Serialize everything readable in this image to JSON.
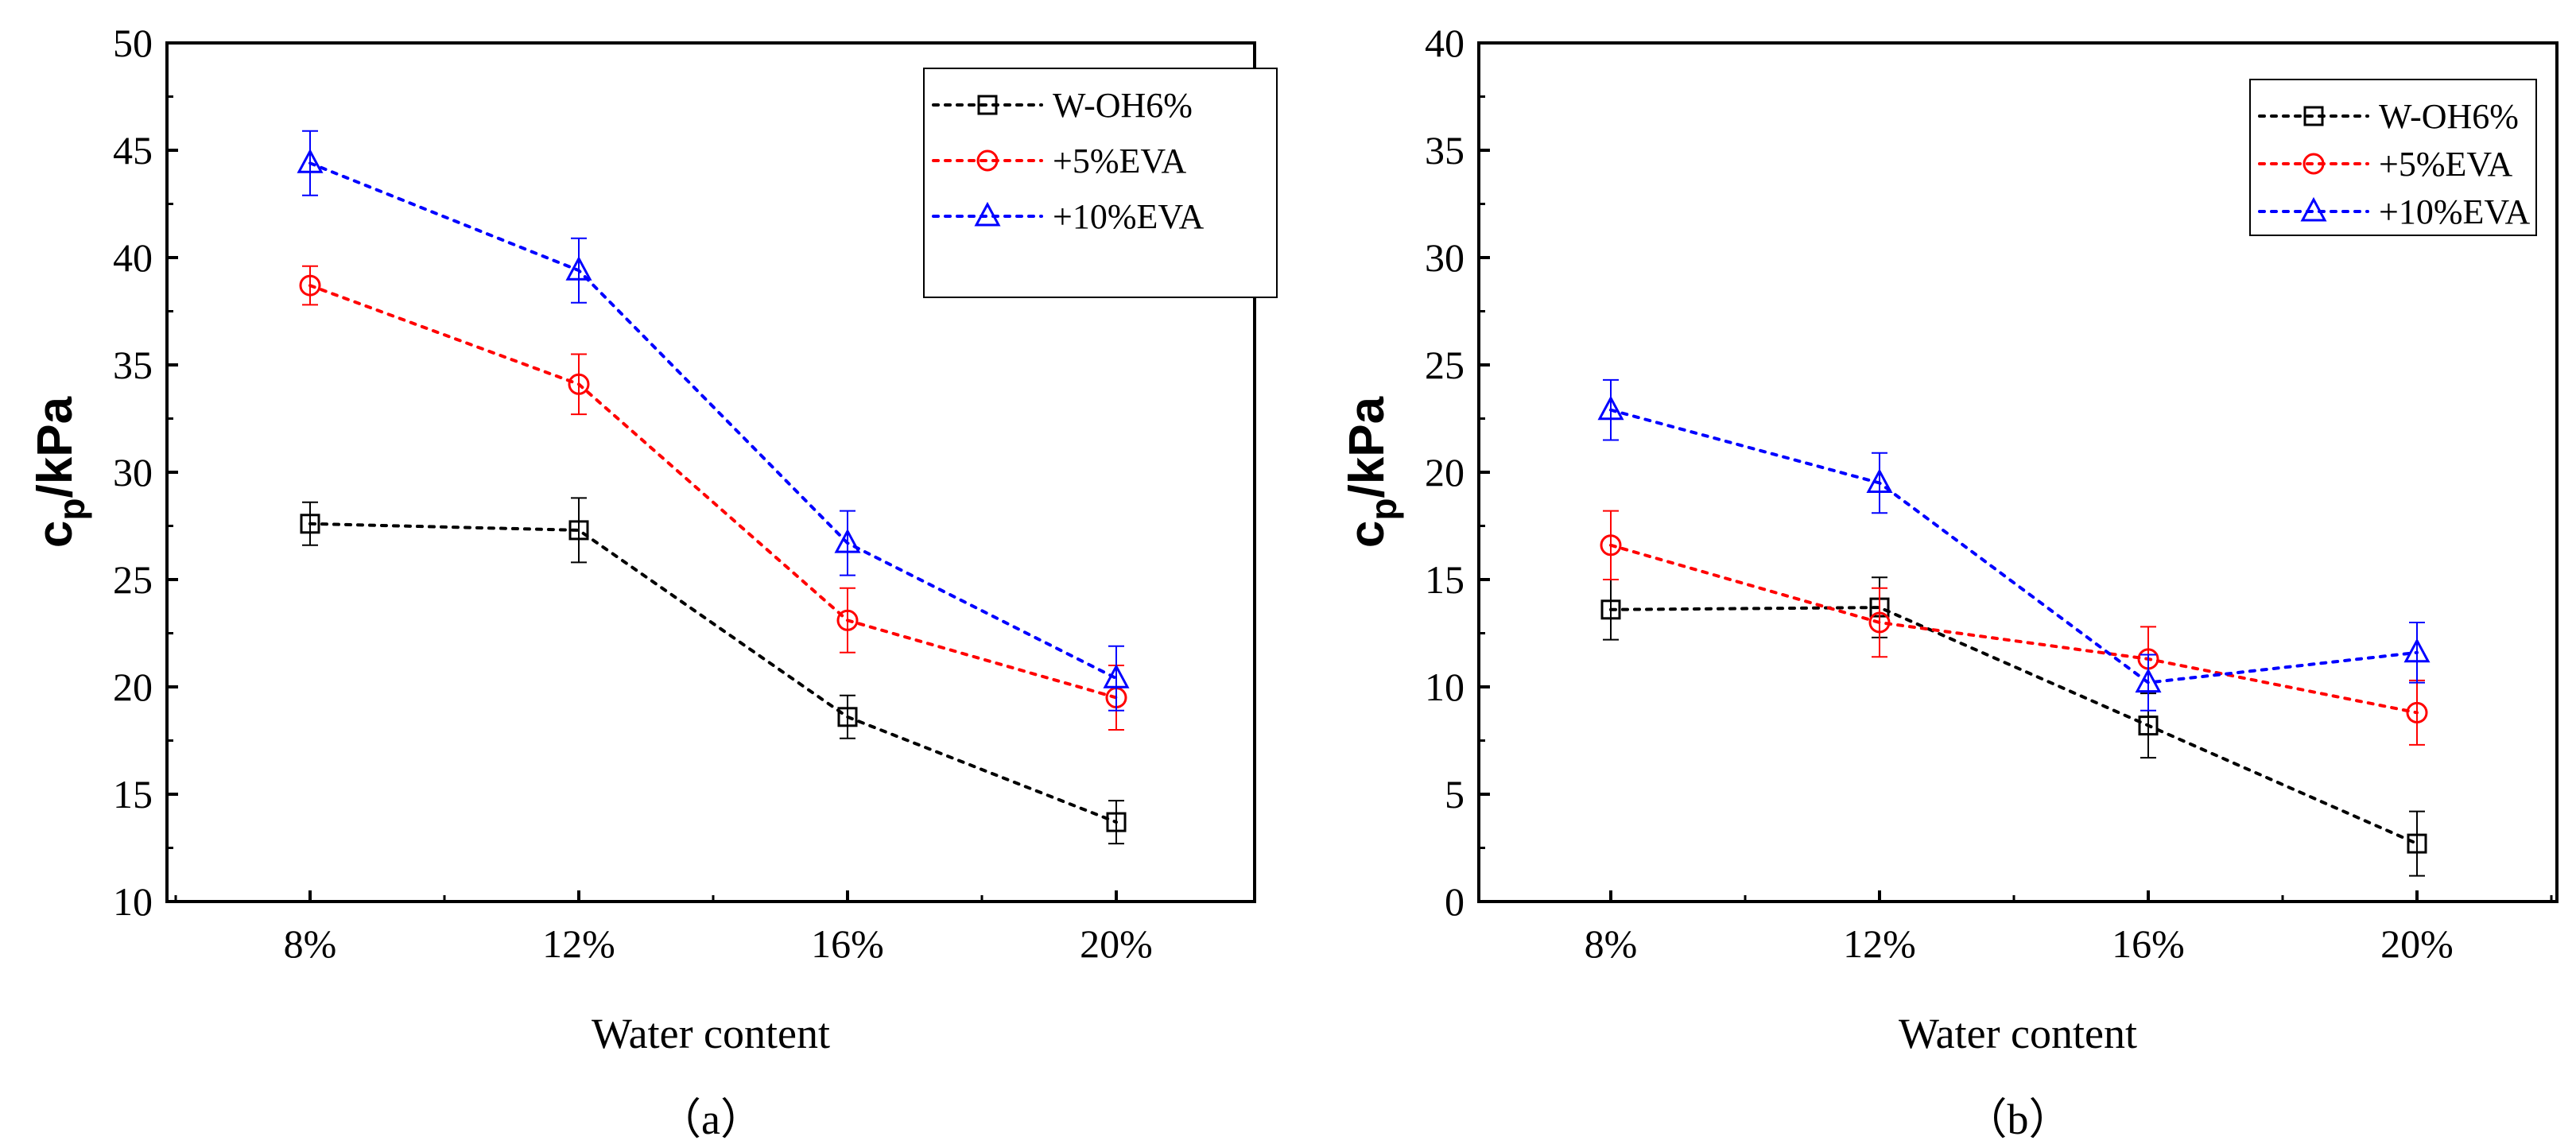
{
  "chart_data": [
    {
      "type": "line",
      "panel_label": "（a）",
      "xlabel": "Water content",
      "ylabel_main": "c",
      "ylabel_sub": "p",
      "ylabel_unit": "/kPa",
      "categories": [
        "8%",
        "12%",
        "16%",
        "20%"
      ],
      "ylim": [
        10,
        50
      ],
      "yticks": [
        "10",
        "15",
        "20",
        "25",
        "30",
        "35",
        "40",
        "45",
        "50"
      ],
      "legend_position": "top-right",
      "series": [
        {
          "name": "W-OH6%",
          "color": "#000000",
          "marker": "square",
          "values": [
            27.6,
            27.3,
            18.6,
            13.7
          ],
          "errors": [
            1.0,
            1.5,
            1.0,
            1.0
          ]
        },
        {
          "name": "+5%EVA",
          "color": "#ff0000",
          "marker": "circle",
          "values": [
            38.7,
            34.1,
            23.1,
            19.5
          ],
          "errors": [
            0.9,
            1.4,
            1.5,
            1.5
          ]
        },
        {
          "name": "+10%EVA",
          "color": "#0000ff",
          "marker": "triangle",
          "values": [
            44.4,
            39.4,
            26.7,
            20.4
          ],
          "errors": [
            1.5,
            1.5,
            1.5,
            1.5
          ]
        }
      ]
    },
    {
      "type": "line",
      "panel_label": "（b）",
      "xlabel": "Water content",
      "ylabel_main": "c",
      "ylabel_sub": "p",
      "ylabel_unit": "/kPa",
      "categories": [
        "8%",
        "12%",
        "16%",
        "20%"
      ],
      "ylim": [
        0,
        40
      ],
      "yticks": [
        "0",
        "5",
        "10",
        "15",
        "20",
        "25",
        "30",
        "35",
        "40"
      ],
      "legend_position": "top-right",
      "series": [
        {
          "name": "W-OH6%",
          "color": "#000000",
          "marker": "square",
          "values": [
            13.6,
            13.7,
            8.2,
            2.7
          ],
          "errors": [
            1.4,
            1.4,
            1.5,
            1.5
          ]
        },
        {
          "name": "+5%EVA",
          "color": "#ff0000",
          "marker": "circle",
          "values": [
            16.6,
            13.0,
            11.3,
            8.8
          ],
          "errors": [
            1.6,
            1.6,
            1.5,
            1.5
          ]
        },
        {
          "name": "+10%EVA",
          "color": "#0000ff",
          "marker": "triangle",
          "values": [
            22.9,
            19.5,
            10.2,
            11.6
          ],
          "errors": [
            1.4,
            1.4,
            1.3,
            1.4
          ]
        }
      ]
    }
  ]
}
